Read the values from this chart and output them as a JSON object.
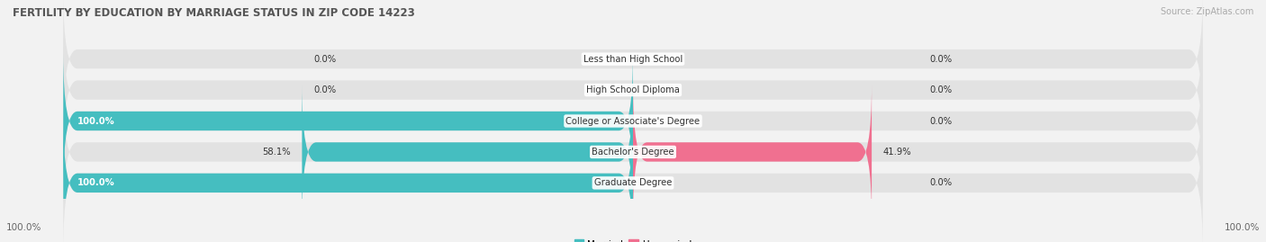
{
  "title": "FERTILITY BY EDUCATION BY MARRIAGE STATUS IN ZIP CODE 14223",
  "source": "Source: ZipAtlas.com",
  "categories": [
    "Less than High School",
    "High School Diploma",
    "College or Associate's Degree",
    "Bachelor's Degree",
    "Graduate Degree"
  ],
  "married": [
    0.0,
    0.0,
    100.0,
    58.1,
    100.0
  ],
  "unmarried": [
    0.0,
    0.0,
    0.0,
    41.9,
    0.0
  ],
  "married_color": "#45bec0",
  "unmarried_color": "#f07090",
  "bg_color": "#f2f2f2",
  "bar_bg_color": "#e2e2e2",
  "bar_height": 0.62,
  "bar_gap": 0.1,
  "figsize": [
    14.06,
    2.69
  ],
  "dpi": 100,
  "x_left_label": "100.0%",
  "x_right_label": "100.0%"
}
